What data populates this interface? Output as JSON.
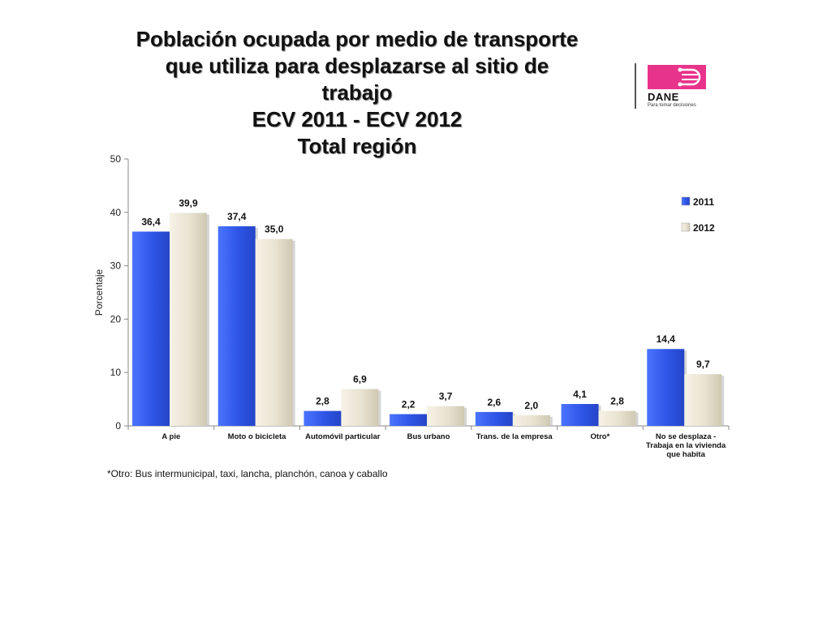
{
  "title": {
    "line1": "Población ocupada por medio de transporte",
    "line2": "que utiliza para desplazarse al sitio de",
    "line3": "trabajo",
    "line4": "ECV 2011 - ECV 2012",
    "line5": "Total región"
  },
  "logo": {
    "wordmark": "DANE",
    "tagline": "Para tomar decisiones"
  },
  "footnote": "*Otro: Bus intermunicipal, taxi, lancha, planchón, canoa y caballo",
  "chart_data": {
    "type": "bar",
    "ylabel": "Porcentaje",
    "ylim": [
      0,
      50
    ],
    "yticks": [
      0,
      10,
      20,
      30,
      40,
      50
    ],
    "grid": false,
    "legend_position": "top-right",
    "categories": [
      [
        "A pie"
      ],
      [
        "Moto o bicicleta"
      ],
      [
        "Automóvil particular"
      ],
      [
        "Bus urbano"
      ],
      [
        "Trans. de la empresa"
      ],
      [
        "Otro*"
      ],
      [
        "No se desplaza -",
        "Trabaja en la vivienda",
        "que habita"
      ]
    ],
    "series": [
      {
        "name": "2011",
        "color": "#2e55e6",
        "values": [
          36.4,
          37.4,
          2.8,
          2.2,
          2.6,
          4.1,
          14.4
        ],
        "labels": [
          "36,4",
          "37,4",
          "2,8",
          "2,2",
          "2,6",
          "4,1",
          "14,4"
        ]
      },
      {
        "name": "2012",
        "color": "#e8e2d0",
        "values": [
          39.9,
          35.0,
          6.9,
          3.7,
          2.0,
          2.8,
          9.7
        ],
        "labels": [
          "39,9",
          "35,0",
          "6,9",
          "3,7",
          "2,0",
          "2,8",
          "9,7"
        ]
      }
    ]
  }
}
